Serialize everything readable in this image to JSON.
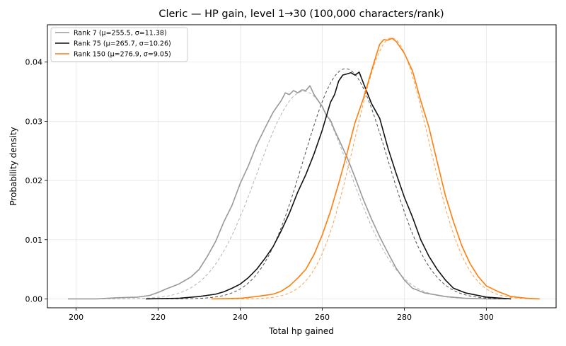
{
  "chart_data": {
    "type": "line",
    "title": "Cleric — HP gain, level 1→30 (100,000 characters/rank)",
    "xlabel": "Total hp gained",
    "ylabel": "Probability density",
    "xlim": [
      193,
      317
    ],
    "ylim": [
      -0.0015,
      0.0463
    ],
    "x_ticks": [
      200,
      220,
      240,
      260,
      280,
      300
    ],
    "y_ticks": [
      0.0,
      0.01,
      0.02,
      0.03,
      0.04
    ],
    "y_tick_labels": [
      "0.00",
      "0.01",
      "0.02",
      "0.03",
      "0.04"
    ],
    "grid": true,
    "legend_position": "top-left",
    "series": [
      {
        "name": "Rank 7 (μ=255.5, σ=11.38)",
        "color": "#999999",
        "mu": 255.5,
        "sigma": 11.38,
        "x": [
          198,
          205,
          210,
          215,
          218,
          220,
          222,
          225,
          228,
          230,
          232,
          234,
          236,
          238,
          240,
          242,
          244,
          246,
          248,
          250,
          251,
          252,
          253,
          254,
          255,
          256,
          257,
          258,
          259,
          260,
          261,
          262,
          263,
          264,
          266,
          268,
          270,
          272,
          274,
          276,
          278,
          280,
          282,
          285,
          290,
          295,
          300,
          305
        ],
        "y": [
          0.0,
          0.0,
          0.0002,
          0.0003,
          0.0006,
          0.0011,
          0.0017,
          0.0025,
          0.0037,
          0.005,
          0.0072,
          0.0097,
          0.013,
          0.0158,
          0.0195,
          0.0225,
          0.026,
          0.0288,
          0.0315,
          0.0335,
          0.0348,
          0.0345,
          0.0352,
          0.0348,
          0.0353,
          0.0352,
          0.036,
          0.0345,
          0.0335,
          0.0325,
          0.031,
          0.0302,
          0.0285,
          0.027,
          0.024,
          0.0205,
          0.0168,
          0.0135,
          0.0105,
          0.0078,
          0.0052,
          0.0032,
          0.0018,
          0.001,
          0.0004,
          0.0001,
          0.0,
          0.0
        ]
      },
      {
        "name": "Rank 75 (μ=265.7, σ=10.26)",
        "color": "#111111",
        "mu": 265.7,
        "sigma": 10.26,
        "x": [
          217,
          225,
          230,
          234,
          236,
          238,
          240,
          242,
          244,
          246,
          248,
          250,
          252,
          254,
          256,
          258,
          260,
          262,
          263,
          264,
          265,
          266,
          267,
          268,
          269,
          270,
          272,
          274,
          276,
          278,
          280,
          282,
          284,
          286,
          288,
          290,
          292,
          295,
          300,
          306
        ],
        "y": [
          0.0,
          0.0001,
          0.0004,
          0.0008,
          0.0012,
          0.0018,
          0.0025,
          0.0036,
          0.005,
          0.0068,
          0.0088,
          0.0115,
          0.0145,
          0.018,
          0.021,
          0.0245,
          0.0285,
          0.0332,
          0.0345,
          0.0368,
          0.0378,
          0.038,
          0.0382,
          0.0378,
          0.0383,
          0.0365,
          0.033,
          0.0305,
          0.0255,
          0.0212,
          0.0172,
          0.0138,
          0.01,
          0.0072,
          0.005,
          0.0032,
          0.0018,
          0.001,
          0.0003,
          0.0
        ]
      },
      {
        "name": "Rank 150 (μ=276.9, σ=9.05)",
        "color": "#ff7f0e",
        "mu": 276.9,
        "sigma": 9.05,
        "x": [
          233,
          240,
          244,
          248,
          250,
          252,
          254,
          256,
          258,
          260,
          262,
          264,
          266,
          268,
          270,
          272,
          273,
          274,
          275,
          276,
          277,
          278,
          279,
          280,
          282,
          284,
          286,
          288,
          290,
          292,
          294,
          296,
          298,
          300,
          303,
          306,
          310,
          313
        ],
        "y": [
          0.0,
          0.0001,
          0.0004,
          0.0008,
          0.0013,
          0.0022,
          0.0035,
          0.005,
          0.0075,
          0.0108,
          0.0148,
          0.0195,
          0.0245,
          0.0298,
          0.0338,
          0.0385,
          0.0408,
          0.043,
          0.0438,
          0.0437,
          0.044,
          0.0435,
          0.0425,
          0.0415,
          0.0385,
          0.0335,
          0.029,
          0.0232,
          0.0175,
          0.013,
          0.009,
          0.006,
          0.0038,
          0.0022,
          0.0012,
          0.0004,
          0.0001,
          0.0
        ]
      }
    ]
  }
}
